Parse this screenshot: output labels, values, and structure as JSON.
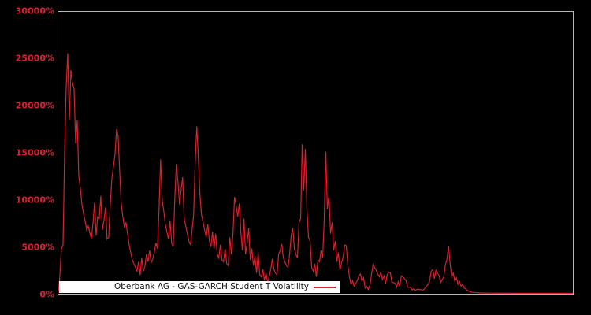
{
  "figure": {
    "background_color": "#000000",
    "plot_border_color": "#b8b8b8",
    "tick_label_color": "#d5222e"
  },
  "y_axis": {
    "ticks": [
      "30000%",
      "25000%",
      "20000%",
      "15000%",
      "10000%",
      "5000%",
      "0%"
    ]
  },
  "legend": {
    "label": "Oberbank AG - GAS-GARCH Student T Volatility",
    "line_color": "#d5222e"
  },
  "chart_data": {
    "type": "line",
    "title": "",
    "xlabel": "",
    "ylabel": "",
    "y_unit": "%",
    "ylim": [
      0,
      30000
    ],
    "grid": false,
    "legend_position": "bottom-left",
    "series": [
      {
        "name": "Oberbank AG - GAS-GARCH Student T Volatility",
        "color": "#d5222e",
        "values": [
          100,
          2000,
          4800,
          5200,
          15000,
          22000,
          25600,
          18500,
          23800,
          22400,
          21800,
          16000,
          18500,
          12500,
          11200,
          9500,
          8500,
          7800,
          6800,
          7200,
          6500,
          5800,
          7400,
          9700,
          6200,
          8200,
          8000,
          10400,
          6800,
          7800,
          9200,
          5800,
          6000,
          9500,
          12200,
          13500,
          14800,
          17500,
          16800,
          13000,
          9500,
          8200,
          7000,
          7600,
          6400,
          5200,
          4400,
          3600,
          3200,
          2800,
          2400,
          3400,
          2000,
          3800,
          2400,
          2900,
          4200,
          3400,
          4600,
          3300,
          3700,
          4400,
          5400,
          4800,
          9000,
          14300,
          10000,
          8800,
          7400,
          6600,
          5800,
          7800,
          5400,
          5000,
          10000,
          13800,
          12000,
          9500,
          11000,
          12400,
          8000,
          7200,
          6400,
          5600,
          5200,
          6800,
          8400,
          14000,
          17800,
          14500,
          10500,
          8400,
          7600,
          6800,
          6000,
          7400,
          5600,
          5000,
          6600,
          4800,
          6400,
          4200,
          3800,
          5200,
          3600,
          3400,
          4800,
          3200,
          3000,
          6000,
          4200,
          6400,
          10300,
          9400,
          8200,
          9600,
          6600,
          4600,
          8000,
          4200,
          5400,
          7000,
          3600,
          4800,
          3000,
          4000,
          2200,
          4400,
          2000,
          1800,
          2600,
          1400,
          2200,
          1200,
          1800,
          2600,
          3700,
          2600,
          2200,
          2000,
          4200,
          4600,
          5300,
          3800,
          3400,
          3000,
          2800,
          4200,
          6200,
          7000,
          4800,
          4200,
          3800,
          7600,
          8000,
          15900,
          11000,
          15400,
          9000,
          6000,
          5600,
          2800,
          2400,
          3200,
          1800,
          3600,
          3400,
          4600,
          3800,
          8000,
          15100,
          9000,
          10500,
          6400,
          7600,
          4600,
          5600,
          3400,
          4400,
          2500,
          3300,
          3900,
          5200,
          5100,
          3000,
          1800,
          1000,
          1400,
          800,
          1100,
          1400,
          1900,
          2100,
          1300,
          1700,
          600,
          800,
          450,
          900,
          2000,
          3100,
          2800,
          2500,
          2100,
          1800,
          2300,
          1500,
          1900,
          1100,
          2000,
          2300,
          2250,
          1200,
          1200,
          1100,
          700,
          1300,
          800,
          1900,
          1800,
          1600,
          1400,
          700,
          700,
          650,
          400,
          550,
          350,
          480,
          460,
          440,
          420,
          400,
          600,
          800,
          1000,
          1400,
          2400,
          2600,
          1600,
          2500,
          2200,
          1900,
          1200,
          1500,
          1800,
          3100,
          3700,
          5100,
          3200,
          1800,
          2200,
          1300,
          1700,
          1000,
          1300,
          800,
          1000,
          600,
          500,
          350,
          260,
          200,
          160,
          140,
          120,
          110,
          100,
          90,
          85,
          80,
          80,
          75,
          75,
          70,
          70,
          70,
          65,
          65,
          65,
          60,
          60,
          60,
          60,
          60,
          55,
          55,
          55,
          55,
          55,
          55,
          50,
          50,
          50,
          50,
          50,
          50,
          50,
          50,
          50,
          50,
          50,
          50,
          50,
          50,
          50,
          50,
          50,
          50,
          50,
          50,
          50,
          50,
          50,
          50,
          50,
          50,
          50,
          50,
          50,
          50,
          50,
          50,
          50,
          50,
          50,
          50,
          50
        ]
      }
    ]
  }
}
